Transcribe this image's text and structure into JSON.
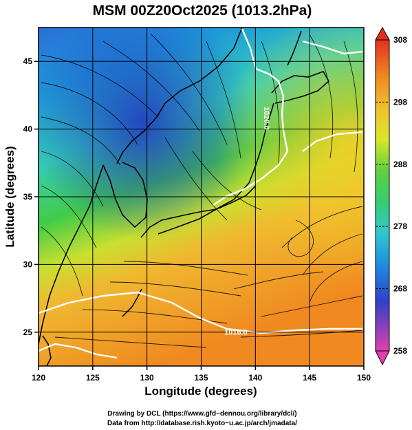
{
  "title": "MSM 00Z20Oct2025 (1013.2hPa)",
  "chart_data": {
    "type": "heatmap",
    "xlabel": "Longitude (degrees)",
    "ylabel": "Latitude  (degrees)",
    "xlim": [
      120,
      150
    ],
    "ylim": [
      22.5,
      47.5
    ],
    "xticks": [
      120,
      125,
      130,
      135,
      140,
      145,
      150
    ],
    "yticks": [
      25,
      30,
      35,
      40,
      45
    ],
    "grid": true,
    "colorbar": {
      "min": 258,
      "max": 308,
      "ticks": [
        308,
        298,
        288,
        278,
        268,
        258
      ],
      "colors": [
        "#e040b0",
        "#3040c8",
        "#1e9ad8",
        "#34d8b0",
        "#38cc40",
        "#d8e828",
        "#f08a20",
        "#e23020"
      ]
    },
    "contour_labels": [
      {
        "text": "1020.0",
        "lon": 140.8,
        "lat": 40.8
      },
      {
        "text": "1016.0",
        "lon": 138.2,
        "lat": 24.8
      }
    ]
  },
  "credits": {
    "line1": "Drawing by DCL (https://www.gfd−dennou.org/library/dcl/)",
    "line2": "Data from http://database.rish.kyoto−u.ac.jp/arch/jmadata/"
  }
}
